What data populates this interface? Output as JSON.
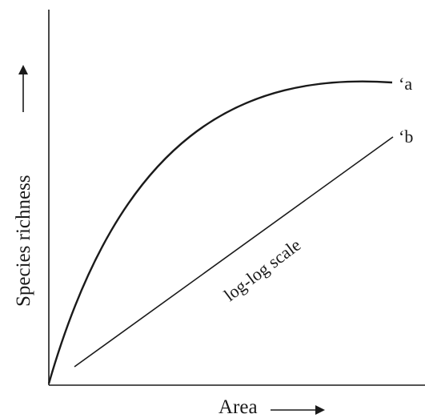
{
  "axes": {
    "x_label": "Area",
    "y_label": "Species richness"
  },
  "curves": {
    "a_label": "‘a",
    "b_label": "‘b"
  },
  "annotation": {
    "text": "log-log scale"
  },
  "icons": {
    "x_arrow": "right-arrow-icon",
    "y_arrow": "up-arrow-icon"
  }
}
